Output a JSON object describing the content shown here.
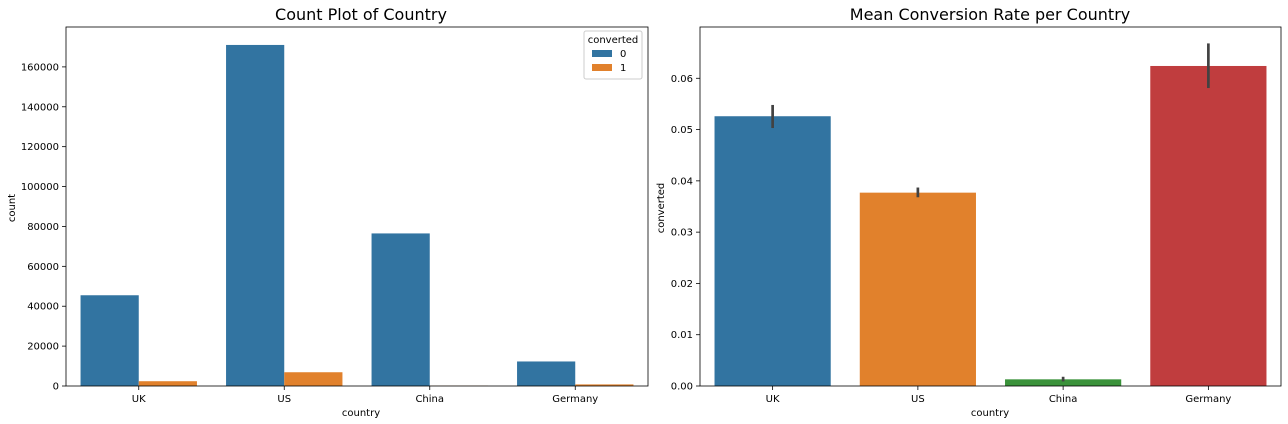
{
  "chart_data": [
    {
      "type": "bar",
      "title": "Count Plot of Country",
      "xlabel": "country",
      "ylabel": "count",
      "categories": [
        "UK",
        "US",
        "China",
        "Germany"
      ],
      "series": [
        {
          "name": "0",
          "values": [
            45500,
            171000,
            76500,
            12300
          ],
          "color": "#3274a1"
        },
        {
          "name": "1",
          "values": [
            2400,
            6900,
            100,
            800
          ],
          "color": "#e1812c"
        }
      ],
      "ylim": [
        0,
        180000
      ],
      "yticks": [
        0,
        20000,
        40000,
        60000,
        80000,
        100000,
        120000,
        140000,
        160000
      ],
      "legend": {
        "title": "converted",
        "placement": "top-right"
      },
      "grid": false
    },
    {
      "type": "bar",
      "title": "Mean Conversion Rate per Country",
      "xlabel": "country",
      "ylabel": "converted",
      "categories": [
        "UK",
        "US",
        "China",
        "Germany"
      ],
      "values": [
        0.0526,
        0.0377,
        0.0013,
        0.0624
      ],
      "error_bars": [
        [
          0.0503,
          0.0548
        ],
        [
          0.0368,
          0.0387
        ],
        [
          0.0009,
          0.0018
        ],
        [
          0.0581,
          0.0668
        ]
      ],
      "colors": [
        "#3274a1",
        "#e1812c",
        "#3a923a",
        "#c03d3e"
      ],
      "ylim": [
        0,
        0.07
      ],
      "yticks": [
        0.0,
        0.01,
        0.02,
        0.03,
        0.04,
        0.05,
        0.06
      ],
      "ytick_format_decimals": 2,
      "grid": false
    }
  ]
}
